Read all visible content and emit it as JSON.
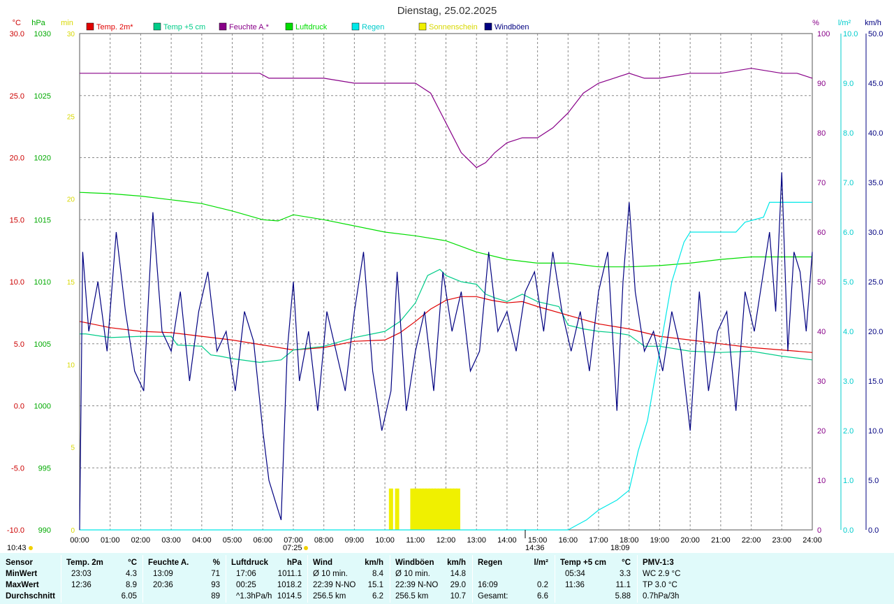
{
  "title": "Dienstag, 25.02.2025",
  "legend": [
    {
      "label": "Temp. 2m*",
      "color": "#e00000"
    },
    {
      "label": "Temp +5 cm",
      "color": "#00cc88"
    },
    {
      "label": "Feuchte A.*",
      "color": "#880088"
    },
    {
      "label": "Luftdruck",
      "color": "#00dd00"
    },
    {
      "label": "Regen",
      "color": "#00e8e8"
    },
    {
      "label": "Sonnenschein",
      "color": "#f0f000"
    },
    {
      "label": "Windböen",
      "color": "#000080"
    }
  ],
  "axes": {
    "temp": {
      "unit": "°C",
      "color": "#cc0000",
      "ticks": [
        "30.0",
        "25.0",
        "20.0",
        "15.0",
        "10.0",
        "5.0",
        "0.0",
        "-5.0",
        "-10.0"
      ]
    },
    "pressure": {
      "unit": "hPa",
      "color": "#00aa00",
      "ticks": [
        "1030",
        "1025",
        "1020",
        "1015",
        "1010",
        "1005",
        "1000",
        "995",
        "990"
      ]
    },
    "sun": {
      "unit": "min",
      "color": "#d8d800",
      "ticks": [
        "30",
        "25",
        "20",
        "15",
        "10",
        "5",
        "0"
      ]
    },
    "humidity": {
      "unit": "%",
      "color": "#880088",
      "ticks": [
        "100",
        "90",
        "80",
        "70",
        "60",
        "50",
        "40",
        "30",
        "20",
        "10",
        "0"
      ]
    },
    "rain": {
      "unit": "l/m²",
      "color": "#00cccc",
      "ticks": [
        "10.0",
        "9.0",
        "8.0",
        "7.0",
        "6.0",
        "5.0",
        "4.0",
        "3.0",
        "2.0",
        "1.0",
        "0.0"
      ]
    },
    "wind": {
      "unit": "km/h",
      "color": "#000080",
      "ticks": [
        "50.0",
        "45.0",
        "40.0",
        "35.0",
        "30.0",
        "25.0",
        "20.0",
        "15.0",
        "10.0",
        "5.0",
        "0.0"
      ]
    },
    "time": [
      "00:00",
      "01:00",
      "02:00",
      "03:00",
      "04:00",
      "05:00",
      "06:00",
      "07:00",
      "08:00",
      "09:00",
      "10:00",
      "11:00",
      "12:00",
      "13:00",
      "14:00",
      "15:00",
      "16:00",
      "17:00",
      "18:00",
      "19:00",
      "20:00",
      "21:00",
      "22:00",
      "23:00",
      "24:00"
    ]
  },
  "markers": {
    "clock": "10:43",
    "sunrise": "07:25",
    "noon": "14:36",
    "sunset": "18:09"
  },
  "chart_data": {
    "type": "line",
    "x_unit": "hours",
    "series": [
      {
        "name": "Temp. 2m*",
        "axis": "temp",
        "x": [
          0,
          1,
          2,
          3,
          4,
          5,
          6,
          7,
          8,
          9,
          10,
          10.5,
          11,
          11.5,
          12,
          12.5,
          13,
          13.5,
          14,
          14.5,
          15,
          16,
          17,
          18,
          19,
          20,
          21,
          22,
          23,
          24
        ],
        "y": [
          6.8,
          6.3,
          6.0,
          5.9,
          5.6,
          5.3,
          4.9,
          4.5,
          4.7,
          5.2,
          5.3,
          5.9,
          6.8,
          7.8,
          8.5,
          8.8,
          8.8,
          8.5,
          8.3,
          8.4,
          8.0,
          7.3,
          6.6,
          6.2,
          5.6,
          5.3,
          5.0,
          4.7,
          4.5,
          4.3
        ]
      },
      {
        "name": "Temp +5 cm",
        "axis": "temp",
        "x": [
          0,
          0.2,
          1,
          2,
          3,
          3.2,
          4,
          4.3,
          4.6,
          5,
          5.9,
          6.6,
          7,
          8,
          9,
          10,
          10.5,
          11,
          11.4,
          11.8,
          12,
          12.5,
          13,
          13.3,
          13.6,
          14,
          14.5,
          15,
          15.7,
          16,
          16.5,
          17,
          17.5,
          18,
          18.5,
          19,
          20,
          21,
          22,
          23,
          24
        ],
        "y": [
          5.8,
          5.8,
          5.5,
          5.6,
          5.6,
          4.9,
          4.8,
          4.1,
          4.0,
          3.8,
          3.5,
          3.7,
          4.5,
          4.8,
          5.5,
          6.0,
          6.8,
          8.3,
          10.5,
          11.0,
          10.5,
          10.0,
          9.8,
          9.0,
          8.7,
          8.4,
          9.0,
          8.4,
          8.0,
          6.5,
          6.2,
          6.0,
          5.9,
          5.7,
          4.8,
          4.8,
          4.4,
          4.3,
          4.4,
          4.0,
          3.7
        ]
      },
      {
        "name": "Feuchte A.*",
        "axis": "humidity",
        "x": [
          0,
          1,
          2,
          3,
          4,
          5,
          5.9,
          6.2,
          7,
          8,
          9,
          10,
          11,
          11.5,
          12,
          12.5,
          13,
          13.3,
          13.6,
          14,
          14.5,
          15,
          15.5,
          16,
          16.5,
          17,
          17.5,
          18,
          18.5,
          19,
          20,
          21,
          22,
          23,
          23.5,
          24
        ],
        "y": [
          92,
          92,
          92,
          92,
          92,
          92,
          92,
          91,
          91,
          91,
          90,
          90,
          90,
          88,
          82,
          76,
          73,
          74,
          76,
          78,
          79,
          79,
          81,
          84,
          88,
          90,
          91,
          92,
          91,
          91,
          92,
          92,
          93,
          92,
          92,
          91
        ]
      },
      {
        "name": "Luftdruck",
        "axis": "pressure",
        "x": [
          0,
          1,
          2,
          3,
          4,
          5,
          6,
          6.5,
          7,
          8,
          9,
          10,
          11,
          12,
          13,
          14,
          15,
          16,
          17,
          18,
          19,
          20,
          21,
          22,
          23,
          24
        ],
        "y": [
          1017.2,
          1017.1,
          1016.9,
          1016.6,
          1016.3,
          1015.7,
          1015.0,
          1014.9,
          1015.4,
          1015.0,
          1014.5,
          1014.0,
          1013.7,
          1013.3,
          1012.4,
          1011.8,
          1011.5,
          1011.5,
          1011.2,
          1011.2,
          1011.3,
          1011.5,
          1011.8,
          1012.0,
          1012.0,
          1012.0
        ]
      },
      {
        "name": "Regen",
        "axis": "rain",
        "x": [
          0,
          16.0,
          16.3,
          16.6,
          17.0,
          17.6,
          18.0,
          18.3,
          18.6,
          19.0,
          19.4,
          19.8,
          20.0,
          20.2,
          21.5,
          21.8,
          22.4,
          22.6,
          23.0,
          24.0
        ],
        "y": [
          0,
          0,
          0.1,
          0.2,
          0.4,
          0.6,
          0.8,
          1.6,
          2.2,
          3.6,
          5.0,
          5.8,
          6.0,
          6.0,
          6.0,
          6.2,
          6.3,
          6.6,
          6.6,
          6.6
        ]
      },
      {
        "name": "Windböen",
        "axis": "wind",
        "x": [
          0,
          0.1,
          0.3,
          0.6,
          0.9,
          1.2,
          1.5,
          1.8,
          2.1,
          2.4,
          2.7,
          3.0,
          3.3,
          3.6,
          3.9,
          4.2,
          4.5,
          4.8,
          5.1,
          5.4,
          5.7,
          6.0,
          6.2,
          6.4,
          6.6,
          6.8,
          7.0,
          7.2,
          7.5,
          7.8,
          8.1,
          8.4,
          8.7,
          9.0,
          9.3,
          9.6,
          9.9,
          10.2,
          10.4,
          10.7,
          11.0,
          11.3,
          11.6,
          11.9,
          12.2,
          12.5,
          12.8,
          13.1,
          13.4,
          13.7,
          14.0,
          14.3,
          14.6,
          14.9,
          15.2,
          15.5,
          15.8,
          16.1,
          16.4,
          16.7,
          17.0,
          17.3,
          17.6,
          17.8,
          18.0,
          18.2,
          18.5,
          18.8,
          19.1,
          19.4,
          19.7,
          20.0,
          20.3,
          20.6,
          20.9,
          21.2,
          21.5,
          21.8,
          22.1,
          22.4,
          22.6,
          22.8,
          23.0,
          23.2,
          23.4,
          23.6,
          23.8,
          24.0
        ],
        "y": [
          0,
          28,
          20,
          25,
          18,
          30,
          22,
          16,
          14,
          32,
          20,
          18,
          24,
          15,
          22,
          26,
          18,
          20,
          14,
          22,
          19,
          10,
          5,
          3,
          1,
          18,
          25,
          15,
          20,
          12,
          22,
          18,
          14,
          22,
          28,
          16,
          10,
          14,
          26,
          12,
          18,
          22,
          14,
          26,
          20,
          24,
          16,
          18,
          28,
          20,
          22,
          18,
          24,
          26,
          20,
          28,
          22,
          18,
          22,
          16,
          24,
          28,
          12,
          25,
          33,
          24,
          18,
          20,
          16,
          22,
          18,
          10,
          24,
          14,
          20,
          22,
          12,
          24,
          20,
          26,
          30,
          22,
          36,
          18,
          28,
          26,
          20,
          28
        ]
      }
    ],
    "sun_minutes": {
      "axis": "sun",
      "x": [
        10.2,
        10.4,
        10.9,
        11.0,
        11.1,
        11.2,
        11.3,
        11.4,
        11.5,
        11.6,
        11.7,
        11.8,
        11.9,
        12.0,
        12.1,
        12.2,
        12.3,
        12.4
      ],
      "y": [
        2.5,
        2.5,
        2.5,
        2.5,
        2.5,
        2.5,
        2.5,
        2.5,
        2.5,
        2.5,
        2.5,
        2.5,
        2.5,
        2.5,
        2.5,
        2.5,
        2.5,
        2.5
      ]
    },
    "ylim_temp": [
      -10,
      30
    ],
    "ylim_humidity": [
      0,
      100
    ],
    "ylim_wind": [
      0,
      50
    ],
    "grid": true
  },
  "stats": {
    "sensor": {
      "header": "Sensor",
      "rows": [
        "MinWert",
        "MaxWert",
        "Durchschnitt"
      ]
    },
    "columns": [
      {
        "name": "Temp. 2m",
        "unit": "°C",
        "rows": [
          [
            "23:03",
            "4.3"
          ],
          [
            "12:36",
            "8.9"
          ],
          [
            "",
            "6.05"
          ]
        ]
      },
      {
        "name": "Feuchte A.",
        "unit": "%",
        "rows": [
          [
            "13:09",
            "71"
          ],
          [
            "20:36",
            "93"
          ],
          [
            "",
            "89"
          ]
        ]
      },
      {
        "name": "Luftdruck",
        "unit": "hPa",
        "rows": [
          [
            "17:06",
            "1011.1"
          ],
          [
            "00:25",
            "1018.2"
          ],
          [
            "^1.3hPa/h",
            "1014.5"
          ]
        ]
      },
      {
        "name": "Wind",
        "unit": "km/h",
        "rows": [
          [
            "Ø 10 min.",
            "8.4"
          ],
          [
            "22:39     N-NO",
            "15.1"
          ],
          [
            "256.5 km",
            "6.2"
          ]
        ]
      },
      {
        "name": "Windböen",
        "unit": "km/h",
        "rows": [
          [
            "Ø 10 min.",
            "14.8"
          ],
          [
            "22:39     N-NO",
            "29.0"
          ],
          [
            "256.5 km",
            "10.7"
          ]
        ]
      },
      {
        "name": "Regen",
        "unit": "l/m²",
        "rows": [
          [
            "",
            ""
          ],
          [
            "16:09",
            "0.2"
          ],
          [
            "Gesamt:",
            "6.6"
          ]
        ]
      },
      {
        "name": "Temp +5 cm",
        "unit": "°C",
        "rows": [
          [
            "05:34",
            "3.3"
          ],
          [
            "11:36",
            "11.1"
          ],
          [
            "",
            "5.88"
          ]
        ]
      },
      {
        "name": "PMV-1:3",
        "unit": "",
        "rows": [
          [
            "WC 2.9 °C",
            ""
          ],
          [
            "TP 3.0 °C",
            ""
          ],
          [
            "0.7hPa/3h",
            ""
          ]
        ]
      }
    ]
  }
}
